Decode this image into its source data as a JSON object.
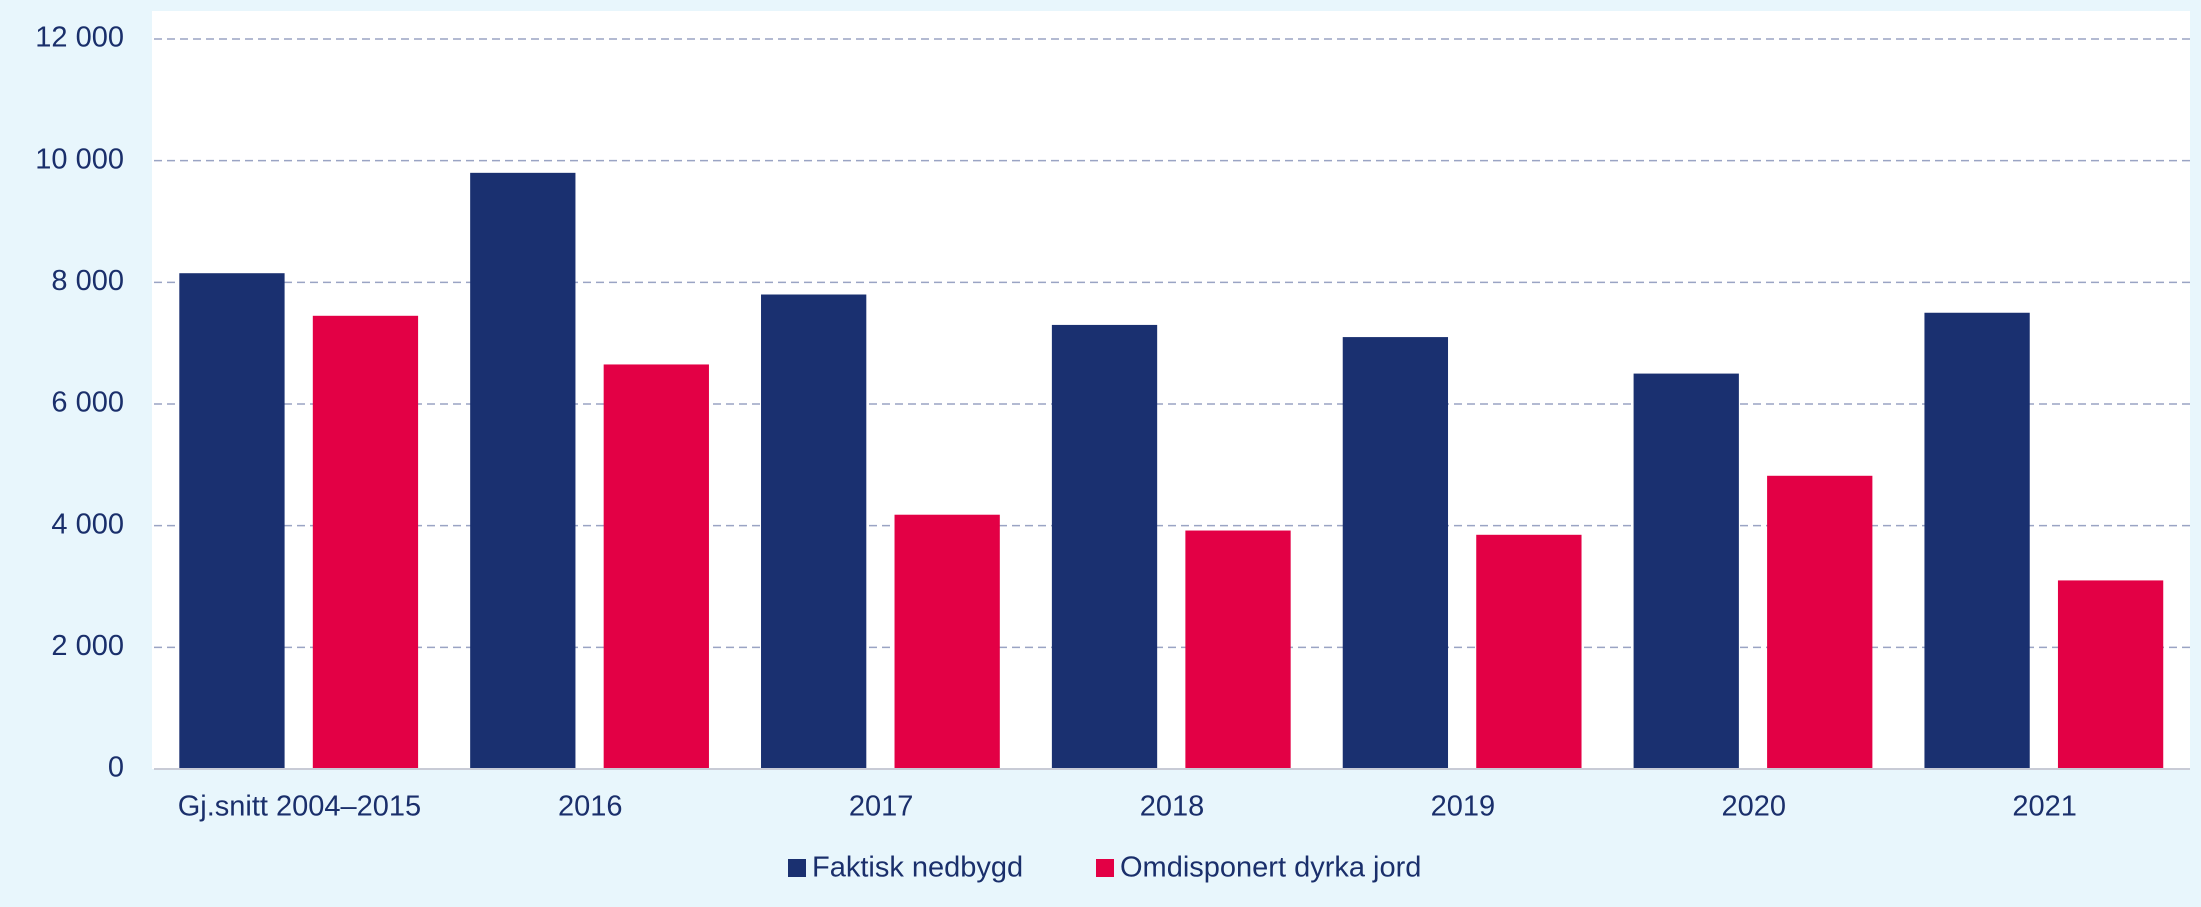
{
  "chart_data": {
    "type": "bar",
    "categories": [
      "Gj.snitt 2004–2015",
      "2016",
      "2017",
      "2018",
      "2019",
      "2020",
      "2021"
    ],
    "series": [
      {
        "name": "Faktisk nedbygd",
        "color": "#1a3070",
        "values": [
          8150,
          9800,
          7800,
          7300,
          7100,
          6500,
          7500
        ]
      },
      {
        "name": "Omdisponert dyrka jord",
        "color": "#e30045",
        "values": [
          7450,
          6650,
          4180,
          3920,
          3850,
          4820,
          3100
        ]
      }
    ],
    "ylim": [
      0,
      12000
    ],
    "yticks": [
      0,
      {
        "value": 2000,
        "label": "2 000"
      },
      {
        "value": 4000,
        "label": "4 000"
      },
      {
        "value": 6000,
        "label": "6 000"
      },
      {
        "value": 8000,
        "label": "8 000"
      },
      {
        "value": 10000,
        "label": "10 000"
      },
      {
        "value": 12000,
        "label": "12 000"
      }
    ],
    "grid": true,
    "legend": "bottom"
  }
}
